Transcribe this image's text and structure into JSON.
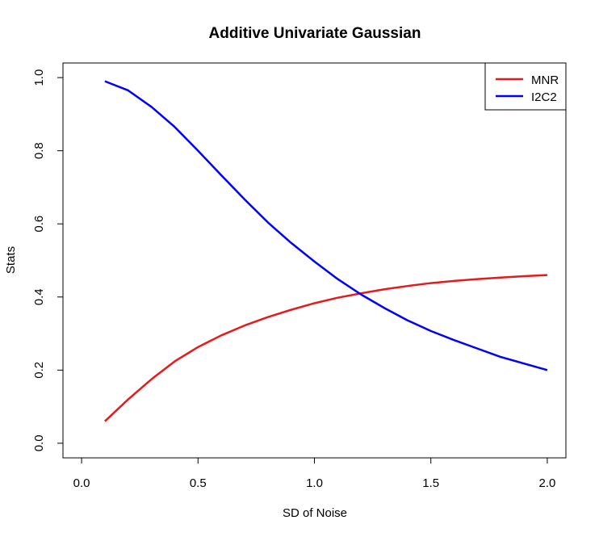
{
  "chart_data": {
    "type": "line",
    "title": "Additive Univariate Gaussian",
    "xlabel": "SD of Noise",
    "ylabel": "Stats",
    "xlim": [
      -0.08,
      2.08
    ],
    "ylim": [
      -0.04,
      1.04
    ],
    "xticks": [
      0.0,
      0.5,
      1.0,
      1.5,
      2.0
    ],
    "xtick_labels": [
      "0.0",
      "0.5",
      "1.0",
      "1.5",
      "2.0"
    ],
    "yticks": [
      0.0,
      0.2,
      0.4,
      0.6,
      0.8,
      1.0
    ],
    "ytick_labels": [
      "0.0",
      "0.2",
      "0.4",
      "0.6",
      "0.8",
      "1.0"
    ],
    "grid": false,
    "legend_position": "top-right",
    "x": [
      0.1,
      0.2,
      0.3,
      0.4,
      0.5,
      0.6,
      0.7,
      0.8,
      0.9,
      1.0,
      1.1,
      1.2,
      1.3,
      1.4,
      1.5,
      1.6,
      1.7,
      1.8,
      1.9,
      2.0
    ],
    "series": [
      {
        "name": "MNR",
        "color": "#e41a1c",
        "values": [
          0.06,
          0.12,
          0.175,
          0.224,
          0.263,
          0.295,
          0.322,
          0.345,
          0.365,
          0.383,
          0.398,
          0.41,
          0.421,
          0.43,
          0.438,
          0.444,
          0.449,
          0.453,
          0.457,
          0.46
        ]
      },
      {
        "name": "I2C2",
        "color": "#0000ff",
        "values": [
          0.99,
          0.965,
          0.92,
          0.865,
          0.8,
          0.733,
          0.667,
          0.604,
          0.548,
          0.497,
          0.449,
          0.407,
          0.37,
          0.336,
          0.307,
          0.282,
          0.259,
          0.236,
          0.218,
          0.2
        ]
      }
    ]
  }
}
